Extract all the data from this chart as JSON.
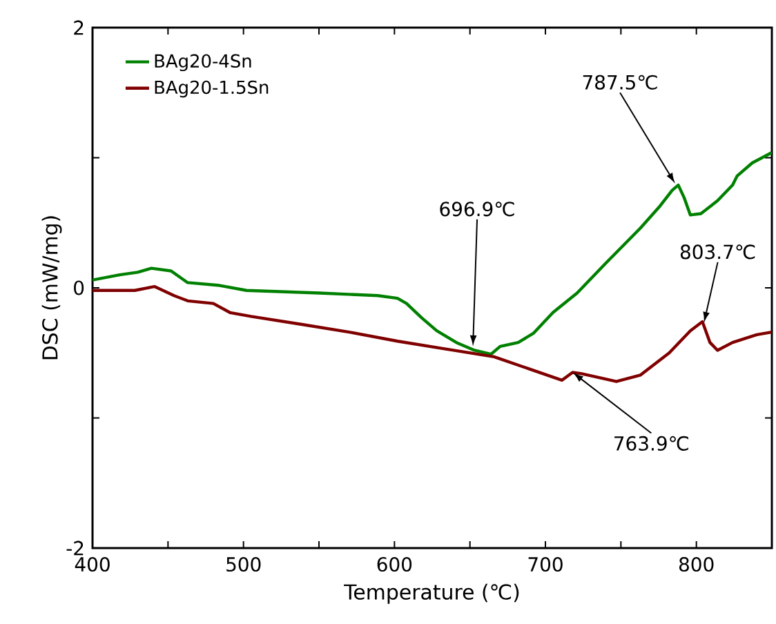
{
  "chart_data": {
    "type": "line",
    "xlabel": "Temperature (℃)",
    "ylabel": "DSC (mW/mg)",
    "xlim": [
      400,
      850
    ],
    "ylim": [
      -2,
      2
    ],
    "xticks": [
      400,
      {
        "value": 450,
        "label": null
      },
      500,
      {
        "value": 550,
        "label": null
      },
      600,
      {
        "value": 650,
        "label": null
      },
      700,
      {
        "value": 750,
        "label": null
      },
      800
    ],
    "yticks": [
      -2,
      {
        "value": -1,
        "label": null
      },
      0,
      {
        "value": 1,
        "label": null
      },
      2
    ],
    "legend": "top left",
    "marker": "none",
    "line_style": "solid",
    "series": [
      {
        "name": "BAg20-4Sn",
        "color": "#008000",
        "x": [
          400,
          418,
          430,
          439,
          452,
          463,
          483,
          502,
          550,
          589,
          602,
          608,
          618,
          628,
          641,
          653,
          664,
          670,
          682,
          692,
          705,
          721,
          740,
          763,
          776,
          784,
          788,
          792,
          796,
          803,
          814,
          824,
          827,
          837,
          850
        ],
        "values": [
          0.06,
          0.1,
          0.12,
          0.15,
          0.13,
          0.04,
          0.02,
          -0.02,
          -0.04,
          -0.06,
          -0.08,
          -0.12,
          -0.23,
          -0.33,
          -0.42,
          -0.48,
          -0.51,
          -0.45,
          -0.42,
          -0.35,
          -0.19,
          -0.04,
          0.19,
          0.46,
          0.63,
          0.75,
          0.79,
          0.69,
          0.56,
          0.57,
          0.67,
          0.79,
          0.86,
          0.96,
          1.04
        ]
      },
      {
        "name": "BAg20-1.5Sn",
        "color": "#800000",
        "x": [
          400,
          428,
          441,
          454,
          463,
          480,
          491,
          505,
          538,
          570,
          602,
          634,
          666,
          686,
          711,
          718,
          724,
          747,
          763,
          782,
          796,
          804,
          809,
          814,
          824,
          840,
          850
        ],
        "values": [
          -0.02,
          -0.02,
          0.01,
          -0.06,
          -0.1,
          -0.12,
          -0.19,
          -0.22,
          -0.28,
          -0.34,
          -0.41,
          -0.47,
          -0.53,
          -0.61,
          -0.71,
          -0.65,
          -0.66,
          -0.72,
          -0.67,
          -0.5,
          -0.33,
          -0.26,
          -0.42,
          -0.48,
          -0.42,
          -0.36,
          -0.34
        ]
      }
    ],
    "annotations": [
      {
        "text": "696.9℃",
        "x": 652,
        "y": -0.45
      },
      {
        "text": "787.5℃",
        "x": 786,
        "y": 0.8
      },
      {
        "text": "803.7℃",
        "x": 805,
        "y": -0.27
      },
      {
        "text": "763.9℃",
        "x": 718,
        "y": -0.65
      }
    ]
  }
}
